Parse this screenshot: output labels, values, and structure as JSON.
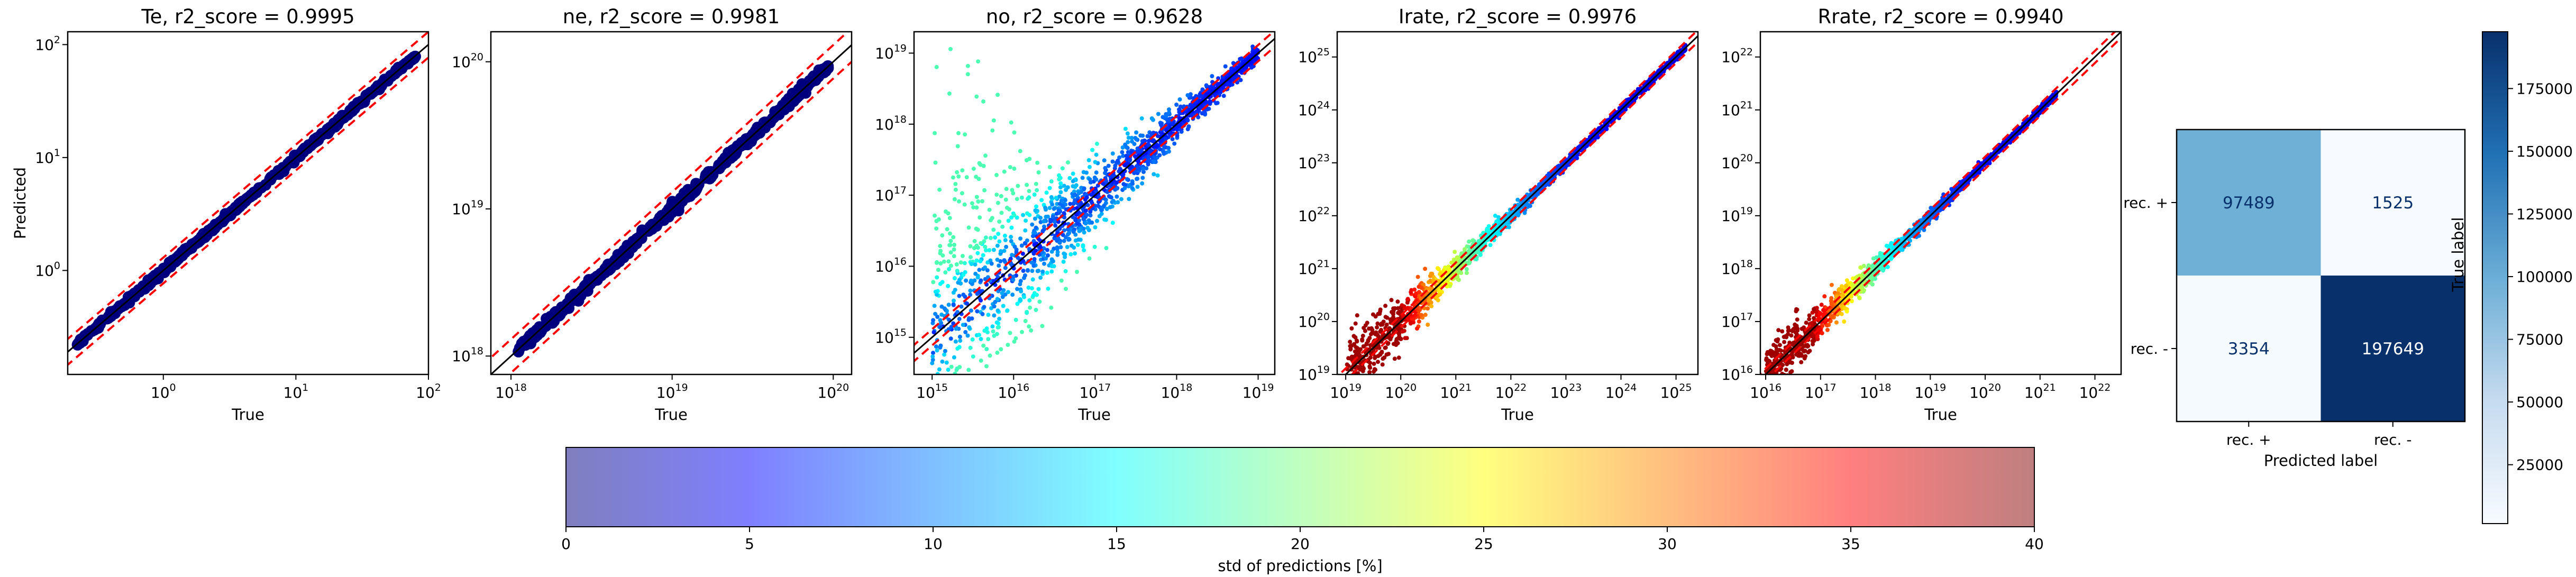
{
  "chart_data": [
    {
      "type": "scatter",
      "title": "Te, r2_score = 0.9995",
      "xlabel": "True",
      "ylabel": "Predicted",
      "xscale": "log",
      "yscale": "log",
      "xlim": [
        0.19,
        100
      ],
      "ylim": [
        0.12,
        130
      ],
      "x_ticks": [
        {
          "base": "10",
          "exp": "0"
        },
        {
          "base": "10",
          "exp": "1"
        },
        {
          "base": "10",
          "exp": "2"
        }
      ],
      "y_ticks": [
        {
          "base": "10",
          "exp": "0"
        },
        {
          "base": "10",
          "exp": "1"
        },
        {
          "base": "10",
          "exp": "2"
        }
      ],
      "data_range": [
        0.22,
        80
      ],
      "identity_line": true,
      "dashed_band_factor": 1.3,
      "point_color_mode": "dark",
      "spread": 0.01
    },
    {
      "type": "scatter",
      "title": "ne, r2_score = 0.9981",
      "xlabel": "True",
      "ylabel": "",
      "xscale": "log",
      "yscale": "log",
      "xlim": [
        7.5e+17,
        1.3e+20
      ],
      "ylim": [
        7.5e+17,
        1.6e+20
      ],
      "x_ticks": [
        {
          "base": "10",
          "exp": "18"
        },
        {
          "base": "10",
          "exp": "19"
        },
        {
          "base": "10",
          "exp": "20"
        }
      ],
      "y_ticks": [
        {
          "base": "10",
          "exp": "18"
        },
        {
          "base": "10",
          "exp": "19"
        },
        {
          "base": "10",
          "exp": "20"
        }
      ],
      "data_range": [
        1.1e+18,
        9.5e+19
      ],
      "identity_line": true,
      "dashed_band_factor": 1.3,
      "point_color_mode": "dark",
      "spread": 0.015
    },
    {
      "type": "scatter",
      "title": "no, r2_score = 0.9628",
      "xlabel": "True",
      "ylabel": "",
      "xscale": "log",
      "yscale": "log",
      "xlim": [
        600000000000000.0,
        1.6e+19
      ],
      "ylim": [
        300000000000000.0,
        2e+19
      ],
      "x_ticks": [
        {
          "base": "10",
          "exp": "15"
        },
        {
          "base": "10",
          "exp": "16"
        },
        {
          "base": "10",
          "exp": "17"
        },
        {
          "base": "10",
          "exp": "18"
        },
        {
          "base": "10",
          "exp": "19"
        }
      ],
      "y_ticks": [
        {
          "base": "10",
          "exp": "15"
        },
        {
          "base": "10",
          "exp": "16"
        },
        {
          "base": "10",
          "exp": "17"
        },
        {
          "base": "10",
          "exp": "18"
        },
        {
          "base": "10",
          "exp": "19"
        }
      ],
      "data_range": [
        1000000000000000.0,
        1e+19
      ],
      "identity_line": true,
      "dashed_band_factor": 1.3,
      "point_color_mode": "mixed",
      "spread": 0.35
    },
    {
      "type": "scatter",
      "title": "Irate, r2_score = 0.9976",
      "xlabel": "True",
      "ylabel": "",
      "xscale": "log",
      "yscale": "log",
      "xlim": [
        7e+18,
        2.5e+25
      ],
      "ylim": [
        1e+19,
        3e+25
      ],
      "x_ticks": [
        {
          "base": "10",
          "exp": "19"
        },
        {
          "base": "10",
          "exp": "20"
        },
        {
          "base": "10",
          "exp": "21"
        },
        {
          "base": "10",
          "exp": "22"
        },
        {
          "base": "10",
          "exp": "23"
        },
        {
          "base": "10",
          "exp": "24"
        },
        {
          "base": "10",
          "exp": "25"
        }
      ],
      "y_ticks": [
        {
          "base": "10",
          "exp": "19"
        },
        {
          "base": "10",
          "exp": "20"
        },
        {
          "base": "10",
          "exp": "21"
        },
        {
          "base": "10",
          "exp": "22"
        },
        {
          "base": "10",
          "exp": "23"
        },
        {
          "base": "10",
          "exp": "24"
        },
        {
          "base": "10",
          "exp": "25"
        }
      ],
      "data_range": [
        1e+19,
        1.5e+25
      ],
      "identity_line": true,
      "dashed_band_factor": 1.3,
      "point_color_mode": "warm-low",
      "spread": 0.15
    },
    {
      "type": "scatter",
      "title": "Rrate, r2_score = 0.9940",
      "xlabel": "True",
      "ylabel": "",
      "xscale": "log",
      "yscale": "log",
      "xlim": [
        8000000000000000.0,
        3e+22
      ],
      "ylim": [
        1e+16,
        3e+22
      ],
      "x_ticks": [
        {
          "base": "10",
          "exp": "16"
        },
        {
          "base": "10",
          "exp": "17"
        },
        {
          "base": "10",
          "exp": "18"
        },
        {
          "base": "10",
          "exp": "19"
        },
        {
          "base": "10",
          "exp": "20"
        },
        {
          "base": "10",
          "exp": "21"
        },
        {
          "base": "10",
          "exp": "22"
        }
      ],
      "y_ticks": [
        {
          "base": "10",
          "exp": "16"
        },
        {
          "base": "10",
          "exp": "17"
        },
        {
          "base": "10",
          "exp": "18"
        },
        {
          "base": "10",
          "exp": "19"
        },
        {
          "base": "10",
          "exp": "20"
        },
        {
          "base": "10",
          "exp": "21"
        },
        {
          "base": "10",
          "exp": "22"
        }
      ],
      "data_range": [
        1e+16,
        2e+21
      ],
      "identity_line": true,
      "dashed_band_factor": 1.3,
      "point_color_mode": "warm-low",
      "spread": 0.12
    },
    {
      "type": "heatmap",
      "title": "",
      "xlabel": "Predicted label",
      "ylabel": "True label",
      "x_categories": [
        "rec. +",
        "rec. -"
      ],
      "y_categories": [
        "rec. +",
        "rec. -"
      ],
      "matrix": [
        [
          97489,
          1525
        ],
        [
          3354,
          197649
        ]
      ],
      "colormap": "Blues",
      "colorbar": {
        "range": [
          1525,
          197649
        ],
        "ticks": [
          "25000",
          "50000",
          "75000",
          "100000",
          "125000",
          "150000",
          "175000"
        ],
        "tick_values": [
          25000,
          50000,
          75000,
          100000,
          125000,
          150000,
          175000
        ]
      }
    },
    {
      "type": "colorbar",
      "label": "std of predictions [%]",
      "range": [
        0,
        40
      ],
      "ticks": [
        "0",
        "5",
        "10",
        "15",
        "20",
        "25",
        "30",
        "35",
        "40"
      ],
      "tick_values": [
        0,
        5,
        10,
        15,
        20,
        25,
        30,
        35,
        40
      ],
      "colormap": "jet",
      "alpha": 0.5
    }
  ],
  "colors": {
    "identity_line": "#000000",
    "band_line": "#ff0000",
    "point_dark": "#00007f"
  }
}
